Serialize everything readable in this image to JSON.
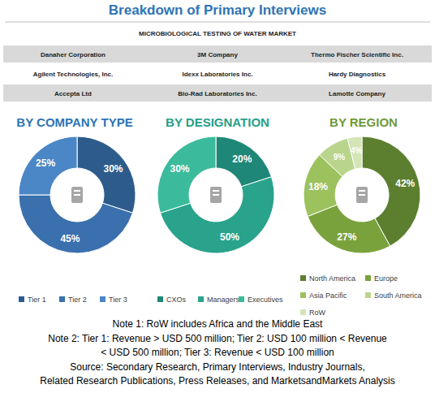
{
  "header": {
    "title": "Breakdown of Primary Interviews",
    "subtitle": "MICROBIOLOGICAL TESTING OF WATER MARKET"
  },
  "companies": [
    [
      "Danaher Corporation",
      "3M Company",
      "Thermo Fischer Scientific Inc."
    ],
    [
      "Agilent Technologies, Inc.",
      "Idexx Laboratories Inc.",
      "Hardy Diagnostics"
    ],
    [
      "Accepta Ltd",
      "Bio-Rad Laboratories Inc.",
      "Lamotte Company"
    ]
  ],
  "chart_data": [
    {
      "type": "pie",
      "title": "BY COMPANY TYPE",
      "categories": [
        "Tier 1",
        "Tier 2",
        "Tier 3"
      ],
      "values": [
        30,
        45,
        25
      ],
      "value_labels": [
        "30%",
        "45%",
        "25%"
      ],
      "data_labels": true,
      "colors": [
        "#2d5c8c",
        "#3a70ad",
        "#4b86c6"
      ]
    },
    {
      "type": "pie",
      "title": "BY DESIGNATION",
      "categories": [
        "CXOs",
        "Managers",
        "Executives"
      ],
      "values": [
        20,
        50,
        30
      ],
      "value_labels": [
        "20%",
        "50%",
        "30%"
      ],
      "data_labels": true,
      "colors": [
        "#1f8777",
        "#29a38b",
        "#3bbb9c"
      ]
    },
    {
      "type": "pie",
      "title": "BY REGION",
      "categories": [
        "North America",
        "Europe",
        "Asia Pacific",
        "South America",
        "RoW"
      ],
      "values": [
        42,
        27,
        18,
        9,
        4
      ],
      "value_labels": [
        "42%",
        "27%",
        "18%",
        "9%",
        "4%"
      ],
      "data_labels": true,
      "colors": [
        "#5b7f2f",
        "#7aa23c",
        "#9cc25e",
        "#b9d58c",
        "#d3e4b6"
      ]
    }
  ],
  "notes": [
    "Note 1: RoW includes Africa and the Middle East",
    "Note 2: Tier 1: Revenue > USD 500 million; Tier 2: USD 100 million < Revenue",
    "< USD 500 million; Tier 3: Revenue < USD 100 million",
    "Source: Secondary Research, Primary Interviews, Industry Journals,",
    "Related Research Publications, Press Releases, and MarketsandMarkets Analysis"
  ]
}
